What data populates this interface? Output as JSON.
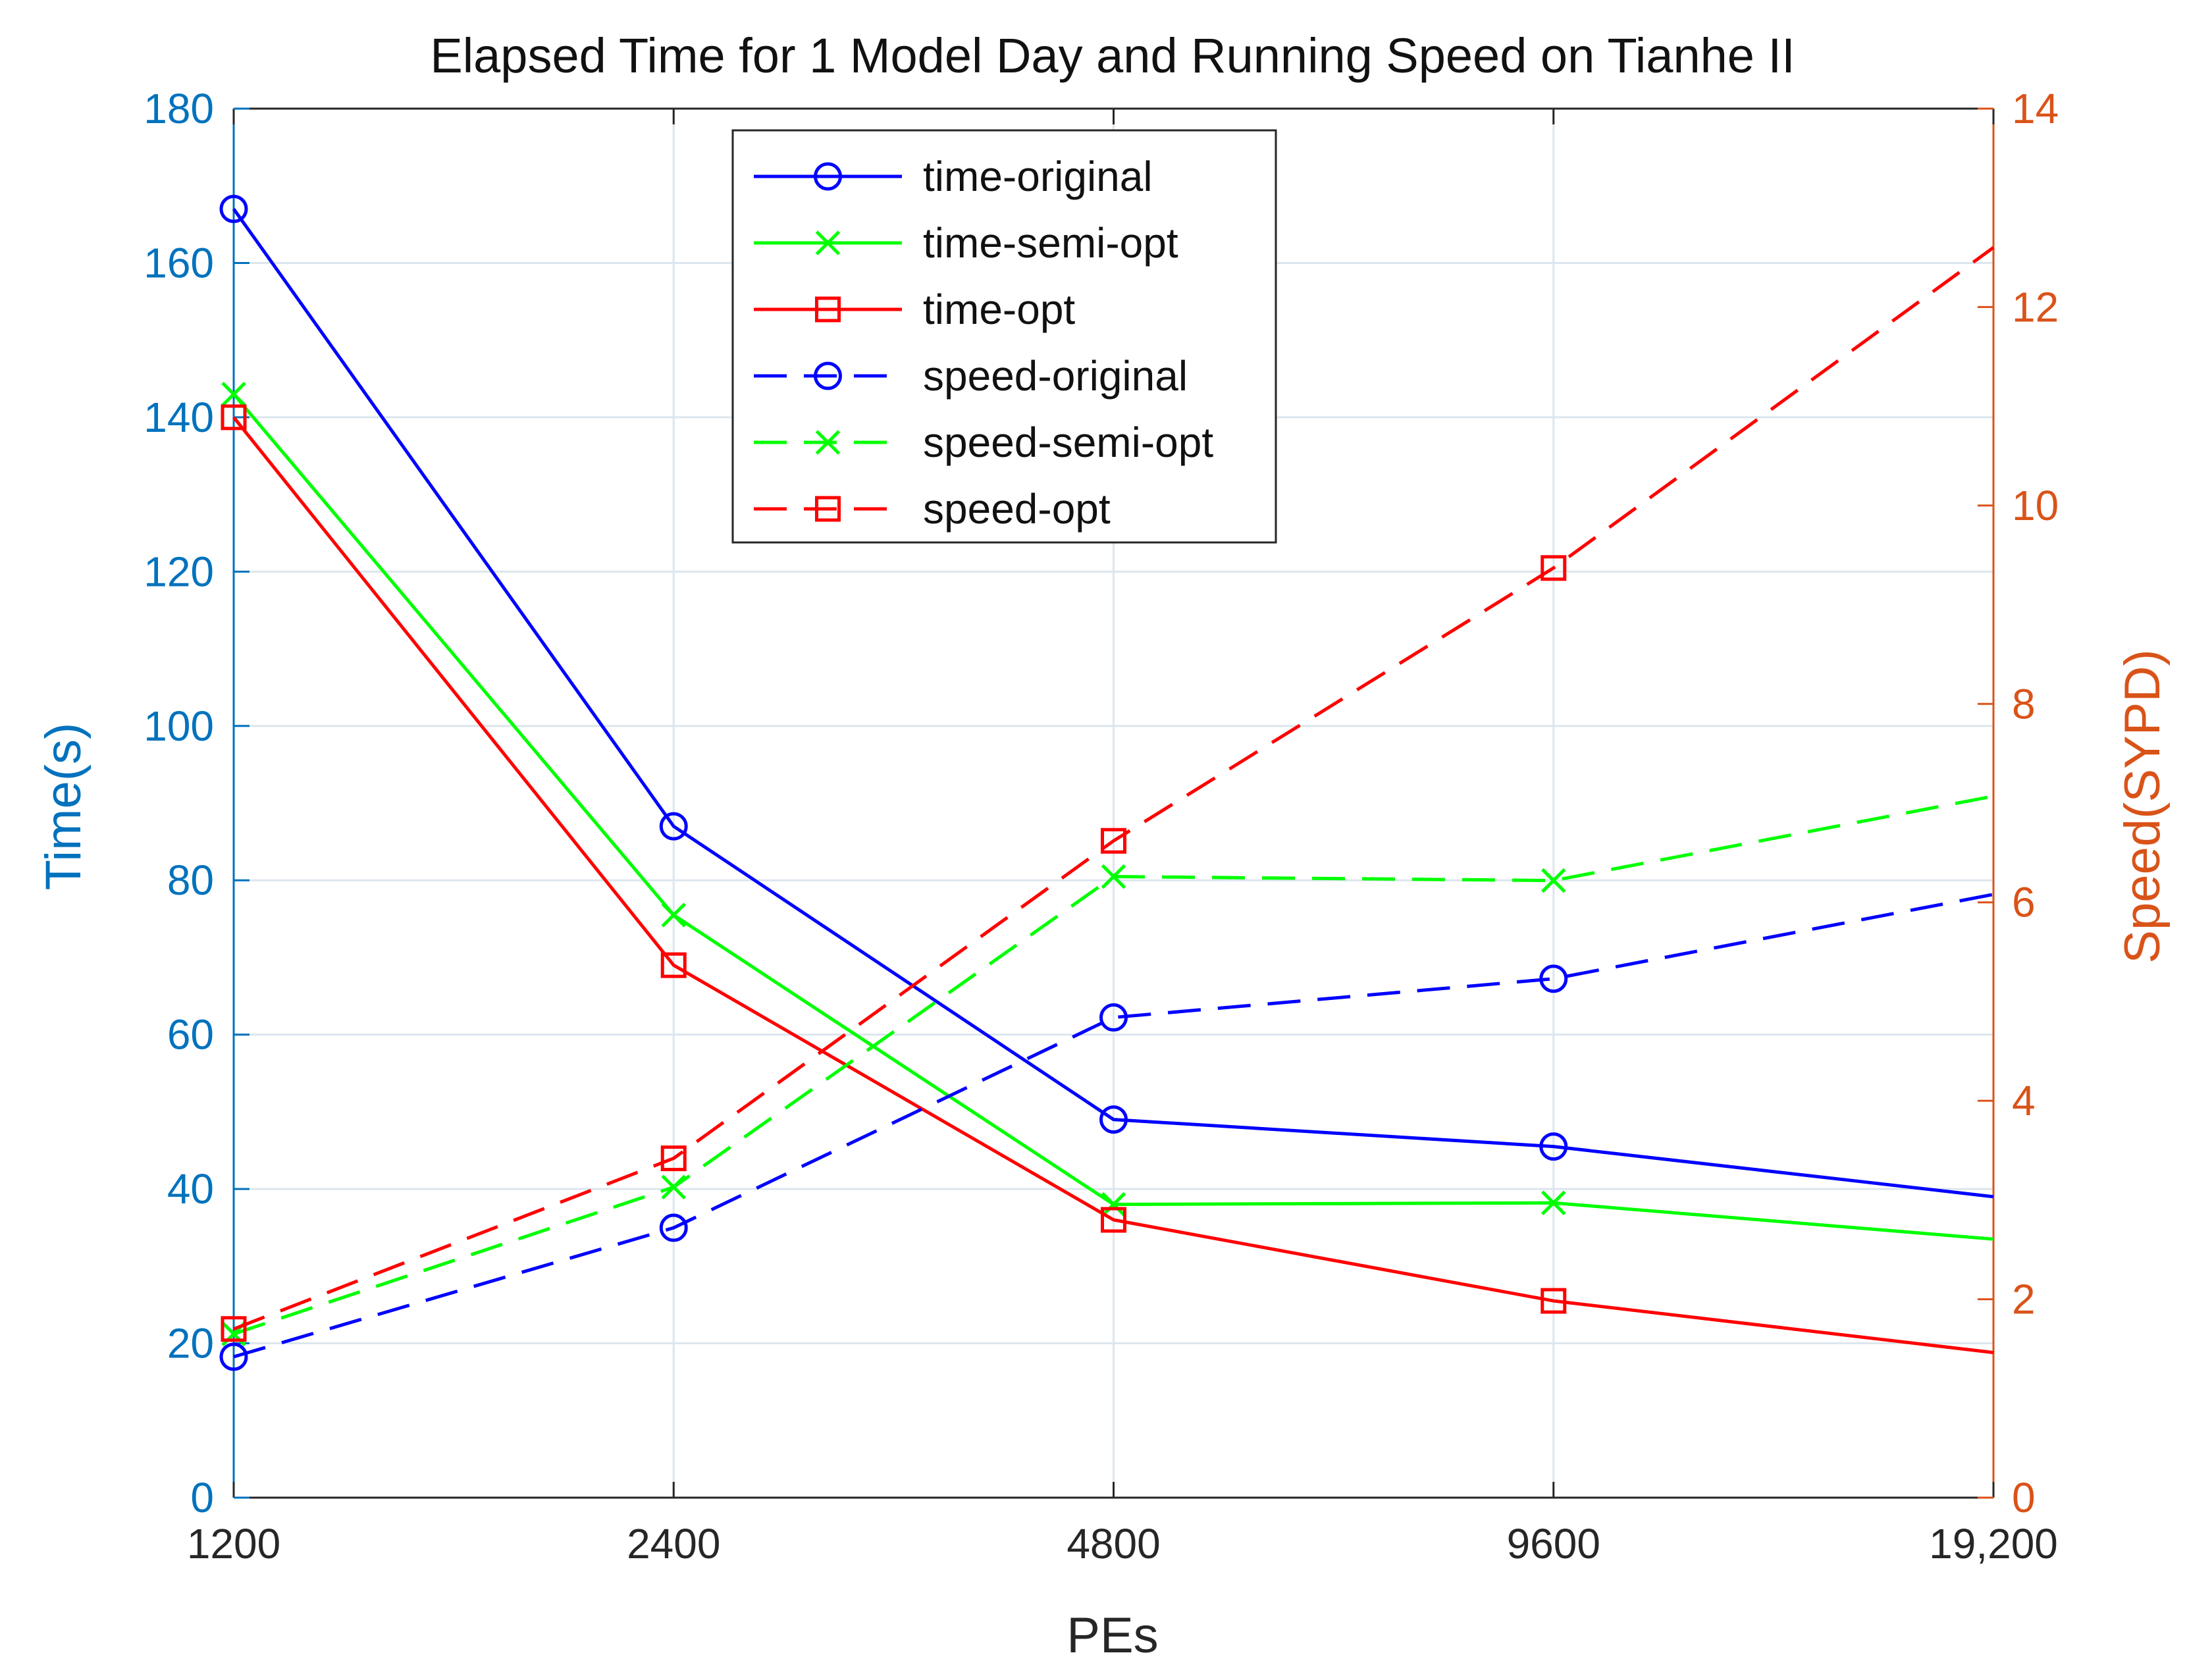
{
  "chart_data": {
    "type": "line",
    "title": "Elapsed Time for 1 Model Day and Running Speed on Tianhe II",
    "xlabel": "PEs",
    "ylabel_left": "Time(s)",
    "ylabel_right": "Speed(SYPD)",
    "categories": [
      "1200",
      "2400",
      "4800",
      "9600",
      "19,200"
    ],
    "ylim_left": [
      0,
      180
    ],
    "ylim_right": [
      0,
      14
    ],
    "yticks_left": [
      "0",
      "20",
      "40",
      "60",
      "80",
      "100",
      "120",
      "140",
      "160",
      "180"
    ],
    "yticks_right": [
      "0",
      "2",
      "4",
      "6",
      "8",
      "10",
      "12",
      "14"
    ],
    "grid": true,
    "legend_position": "top-center",
    "colors": {
      "left_axis": "#0072BD",
      "right_axis": "#D95319",
      "blue": "#0000FF",
      "green": "#00FF00",
      "red": "#FF0000",
      "grid": "#DCE6EE",
      "frame": "#262626"
    },
    "series": [
      {
        "name": "time-original",
        "axis": "left",
        "color": "#0000FF",
        "style": "solid",
        "marker": "circle",
        "values": [
          167,
          87,
          49,
          45.5,
          39
        ],
        "marked": [
          true,
          true,
          true,
          true,
          false
        ]
      },
      {
        "name": "time-semi-opt",
        "axis": "left",
        "color": "#00FF00",
        "style": "solid",
        "marker": "x",
        "values": [
          143,
          75.5,
          38,
          38.2,
          33.5
        ],
        "marked": [
          true,
          true,
          true,
          true,
          false
        ]
      },
      {
        "name": "time-opt",
        "axis": "left",
        "color": "#FF0000",
        "style": "solid",
        "marker": "square",
        "values": [
          140,
          69,
          36,
          25.5,
          18.8
        ],
        "marked": [
          true,
          true,
          true,
          true,
          false
        ]
      },
      {
        "name": "speed-original",
        "axis": "right",
        "color": "#0000FF",
        "style": "dashed",
        "marker": "circle",
        "values": [
          1.42,
          2.72,
          4.84,
          5.23,
          6.08
        ],
        "marked": [
          true,
          true,
          true,
          true,
          false
        ]
      },
      {
        "name": "speed-semi-opt",
        "axis": "right",
        "color": "#00FF00",
        "style": "dashed",
        "marker": "x",
        "values": [
          1.65,
          3.13,
          6.26,
          6.22,
          7.07
        ],
        "marked": [
          true,
          true,
          true,
          true,
          false
        ]
      },
      {
        "name": "speed-opt",
        "axis": "right",
        "color": "#FF0000",
        "style": "dashed",
        "marker": "square",
        "values": [
          1.7,
          3.42,
          6.62,
          9.37,
          12.6
        ],
        "marked": [
          true,
          true,
          true,
          true,
          false
        ]
      }
    ]
  }
}
